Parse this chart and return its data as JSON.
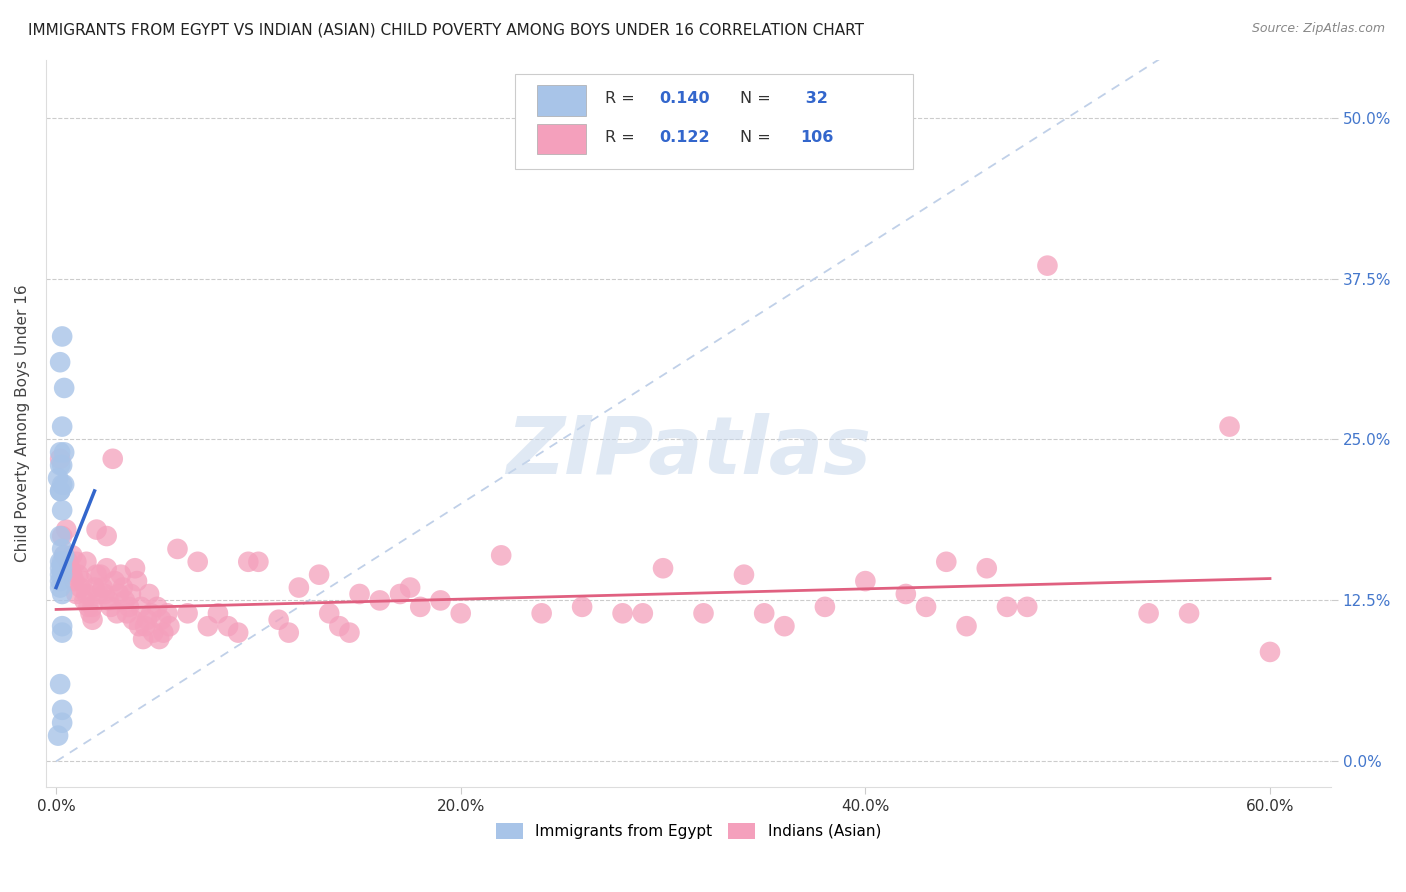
{
  "title": "IMMIGRANTS FROM EGYPT VS INDIAN (ASIAN) CHILD POVERTY AMONG BOYS UNDER 16 CORRELATION CHART",
  "source": "Source: ZipAtlas.com",
  "ylabel": "Child Poverty Among Boys Under 16",
  "xlim": [
    -0.005,
    0.63
  ],
  "ylim": [
    -0.02,
    0.545
  ],
  "x_tick_vals": [
    0.0,
    0.2,
    0.4,
    0.6
  ],
  "x_tick_labels": [
    "0.0%",
    "20.0%",
    "40.0%",
    "60.0%"
  ],
  "y_tick_vals": [
    0.0,
    0.125,
    0.25,
    0.375,
    0.5
  ],
  "y_tick_labels": [
    "0.0%",
    "12.5%",
    "25.0%",
    "37.5%",
    "50.0%"
  ],
  "legend_r_egypt": "0.140",
  "legend_n_egypt": "32",
  "legend_r_indian": "0.122",
  "legend_n_indian": "106",
  "watermark": "ZIPatlas",
  "egypt_color": "#a8c4e8",
  "indian_color": "#f4a0bc",
  "egypt_line_color": "#3366cc",
  "indian_line_color": "#e06080",
  "diagonal_color": "#c0d0e8",
  "egypt_scatter": [
    [
      0.001,
      0.22
    ],
    [
      0.002,
      0.31
    ],
    [
      0.004,
      0.29
    ],
    [
      0.003,
      0.33
    ],
    [
      0.002,
      0.24
    ],
    [
      0.003,
      0.26
    ],
    [
      0.004,
      0.24
    ],
    [
      0.003,
      0.23
    ],
    [
      0.002,
      0.23
    ],
    [
      0.002,
      0.21
    ],
    [
      0.002,
      0.21
    ],
    [
      0.003,
      0.215
    ],
    [
      0.004,
      0.215
    ],
    [
      0.003,
      0.195
    ],
    [
      0.002,
      0.175
    ],
    [
      0.003,
      0.165
    ],
    [
      0.004,
      0.16
    ],
    [
      0.002,
      0.155
    ],
    [
      0.003,
      0.155
    ],
    [
      0.003,
      0.15
    ],
    [
      0.002,
      0.15
    ],
    [
      0.003,
      0.145
    ],
    [
      0.002,
      0.14
    ],
    [
      0.002,
      0.145
    ],
    [
      0.002,
      0.135
    ],
    [
      0.003,
      0.13
    ],
    [
      0.003,
      0.105
    ],
    [
      0.003,
      0.1
    ],
    [
      0.002,
      0.06
    ],
    [
      0.003,
      0.04
    ],
    [
      0.003,
      0.03
    ],
    [
      0.001,
      0.02
    ]
  ],
  "indian_scatter": [
    [
      0.002,
      0.235
    ],
    [
      0.003,
      0.175
    ],
    [
      0.004,
      0.16
    ],
    [
      0.005,
      0.18
    ],
    [
      0.006,
      0.155
    ],
    [
      0.007,
      0.15
    ],
    [
      0.008,
      0.16
    ],
    [
      0.008,
      0.145
    ],
    [
      0.009,
      0.14
    ],
    [
      0.01,
      0.155
    ],
    [
      0.01,
      0.13
    ],
    [
      0.011,
      0.145
    ],
    [
      0.012,
      0.135
    ],
    [
      0.013,
      0.14
    ],
    [
      0.014,
      0.125
    ],
    [
      0.015,
      0.155
    ],
    [
      0.015,
      0.13
    ],
    [
      0.016,
      0.12
    ],
    [
      0.017,
      0.115
    ],
    [
      0.018,
      0.12
    ],
    [
      0.018,
      0.11
    ],
    [
      0.019,
      0.135
    ],
    [
      0.02,
      0.18
    ],
    [
      0.02,
      0.145
    ],
    [
      0.021,
      0.13
    ],
    [
      0.022,
      0.145
    ],
    [
      0.023,
      0.135
    ],
    [
      0.024,
      0.13
    ],
    [
      0.025,
      0.175
    ],
    [
      0.025,
      0.15
    ],
    [
      0.026,
      0.125
    ],
    [
      0.027,
      0.12
    ],
    [
      0.028,
      0.235
    ],
    [
      0.029,
      0.14
    ],
    [
      0.03,
      0.115
    ],
    [
      0.031,
      0.13
    ],
    [
      0.032,
      0.145
    ],
    [
      0.033,
      0.135
    ],
    [
      0.034,
      0.125
    ],
    [
      0.035,
      0.115
    ],
    [
      0.036,
      0.12
    ],
    [
      0.037,
      0.13
    ],
    [
      0.038,
      0.11
    ],
    [
      0.039,
      0.15
    ],
    [
      0.04,
      0.14
    ],
    [
      0.041,
      0.105
    ],
    [
      0.042,
      0.12
    ],
    [
      0.043,
      0.095
    ],
    [
      0.044,
      0.105
    ],
    [
      0.045,
      0.11
    ],
    [
      0.046,
      0.13
    ],
    [
      0.047,
      0.115
    ],
    [
      0.048,
      0.1
    ],
    [
      0.05,
      0.12
    ],
    [
      0.051,
      0.095
    ],
    [
      0.052,
      0.11
    ],
    [
      0.053,
      0.1
    ],
    [
      0.055,
      0.115
    ],
    [
      0.056,
      0.105
    ],
    [
      0.06,
      0.165
    ],
    [
      0.065,
      0.115
    ],
    [
      0.07,
      0.155
    ],
    [
      0.075,
      0.105
    ],
    [
      0.08,
      0.115
    ],
    [
      0.085,
      0.105
    ],
    [
      0.09,
      0.1
    ],
    [
      0.095,
      0.155
    ],
    [
      0.1,
      0.155
    ],
    [
      0.11,
      0.11
    ],
    [
      0.115,
      0.1
    ],
    [
      0.12,
      0.135
    ],
    [
      0.13,
      0.145
    ],
    [
      0.135,
      0.115
    ],
    [
      0.14,
      0.105
    ],
    [
      0.145,
      0.1
    ],
    [
      0.15,
      0.13
    ],
    [
      0.16,
      0.125
    ],
    [
      0.17,
      0.13
    ],
    [
      0.175,
      0.135
    ],
    [
      0.18,
      0.12
    ],
    [
      0.19,
      0.125
    ],
    [
      0.2,
      0.115
    ],
    [
      0.22,
      0.16
    ],
    [
      0.24,
      0.115
    ],
    [
      0.26,
      0.12
    ],
    [
      0.28,
      0.115
    ],
    [
      0.29,
      0.115
    ],
    [
      0.3,
      0.15
    ],
    [
      0.32,
      0.115
    ],
    [
      0.34,
      0.145
    ],
    [
      0.35,
      0.115
    ],
    [
      0.36,
      0.105
    ],
    [
      0.38,
      0.12
    ],
    [
      0.4,
      0.14
    ],
    [
      0.42,
      0.13
    ],
    [
      0.43,
      0.12
    ],
    [
      0.44,
      0.155
    ],
    [
      0.45,
      0.105
    ],
    [
      0.46,
      0.15
    ],
    [
      0.47,
      0.12
    ],
    [
      0.48,
      0.12
    ],
    [
      0.49,
      0.385
    ],
    [
      0.54,
      0.115
    ],
    [
      0.56,
      0.115
    ],
    [
      0.58,
      0.26
    ],
    [
      0.6,
      0.085
    ]
  ]
}
